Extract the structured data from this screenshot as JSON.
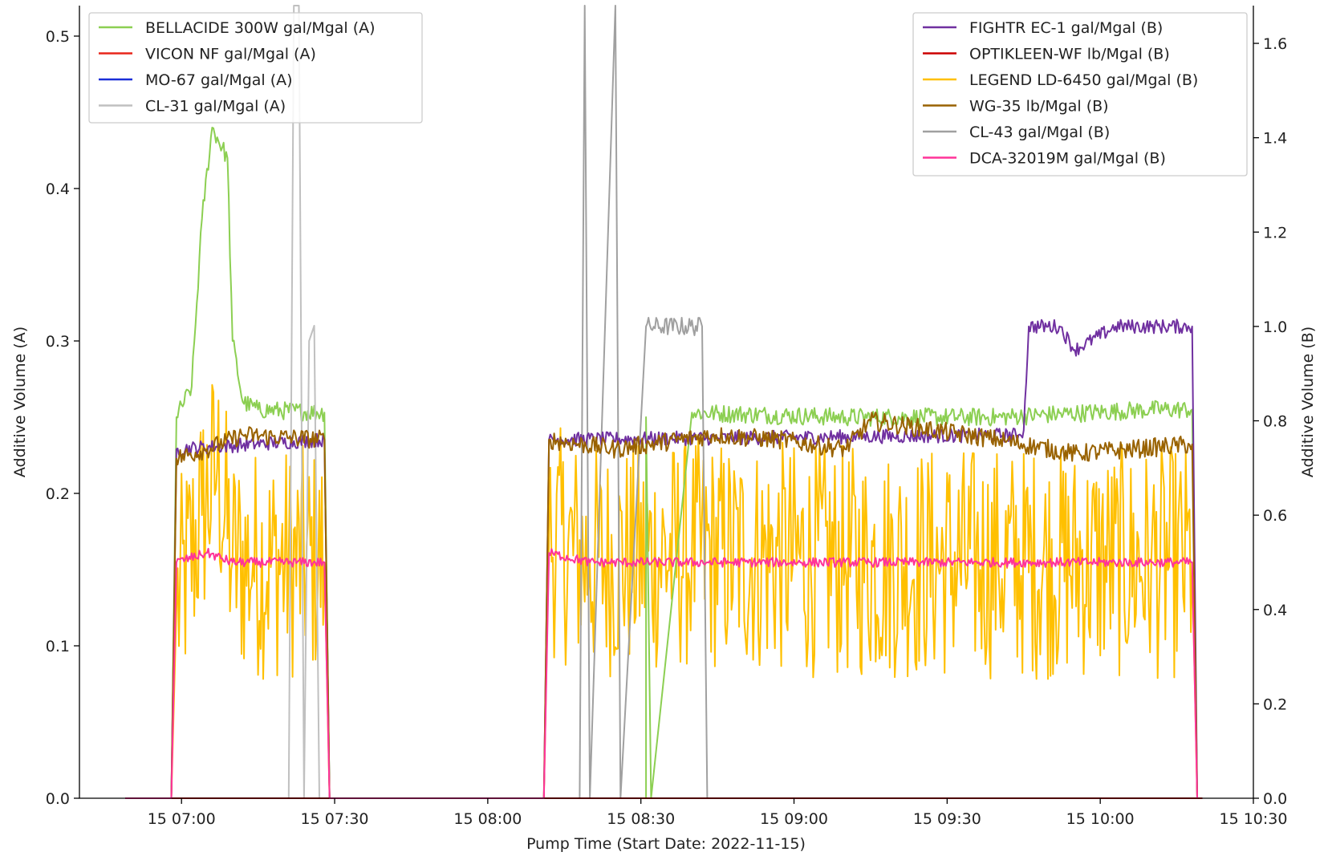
{
  "chart_data": {
    "type": "line",
    "title": "",
    "xlabel": "Pump Time (Start Date: 2022-11-15)",
    "ylabel_left": "Additive Volume (A)",
    "ylabel_right": "Additive Volume (B)",
    "x_unit": "minutes after 2022-11-15 06:40",
    "xlim": [
      "2022-11-15 06:40",
      "2022-11-15 10:30"
    ],
    "ylim_left": [
      0,
      0.52
    ],
    "ylim_right": [
      0,
      1.68
    ],
    "x_ticks": [
      {
        "t": "2022-11-15 07:00",
        "label": "15 07:00"
      },
      {
        "t": "2022-11-15 07:30",
        "label": "15 07:30"
      },
      {
        "t": "2022-11-15 08:00",
        "label": "15 08:00"
      },
      {
        "t": "2022-11-15 08:30",
        "label": "15 08:30"
      },
      {
        "t": "2022-11-15 09:00",
        "label": "15 09:00"
      },
      {
        "t": "2022-11-15 09:30",
        "label": "15 09:30"
      },
      {
        "t": "2022-11-15 10:00",
        "label": "15 10:00"
      },
      {
        "t": "2022-11-15 10:30",
        "label": "15 10:30"
      }
    ],
    "y_ticks_left": [
      "0.0",
      "0.1",
      "0.2",
      "0.3",
      "0.4",
      "0.5"
    ],
    "y_ticks_right": [
      "0.0",
      "0.2",
      "0.4",
      "0.6",
      "0.8",
      "1.0",
      "1.2",
      "1.4",
      "1.6"
    ],
    "grid": false,
    "legend_left_position": "upper-left",
    "legend_right_position": "upper-right",
    "series": [
      {
        "name": "BELLACIDE 300W gal/Mgal (A)",
        "axis": "A",
        "color": "#8ccf52",
        "noise": 0.006,
        "points": [
          [
            "06:49",
            0
          ],
          [
            "06:58",
            0
          ],
          [
            "06:59",
            0.25
          ],
          [
            "07:02",
            0.27
          ],
          [
            "07:04",
            0.38
          ],
          [
            "07:06",
            0.44
          ],
          [
            "07:09",
            0.42
          ],
          [
            "07:10",
            0.3
          ],
          [
            "07:12",
            0.26
          ],
          [
            "07:15",
            0.255
          ],
          [
            "07:28",
            0.253
          ],
          [
            "07:29",
            0
          ],
          [
            "08:31",
            0
          ],
          [
            "08:32",
            0
          ],
          [
            "08:29",
            0
          ],
          [
            "08:30",
            0
          ],
          [
            "08:31",
            0.25
          ],
          [
            "08:40",
            0.253
          ],
          [
            "09:10",
            0.25
          ],
          [
            "09:40",
            0.25
          ],
          [
            "10:10",
            0.255
          ],
          [
            "10:18",
            0.255
          ],
          [
            "10:19",
            0
          ]
        ]
      },
      {
        "name": "VICON NF gal/Mgal (A)",
        "axis": "A",
        "color": "#e8251a",
        "noise": 0,
        "points": [
          [
            "06:49",
            0
          ],
          [
            "10:20",
            0
          ]
        ]
      },
      {
        "name": "MO-67 gal/Mgal (A)",
        "axis": "A",
        "color": "#1a2ed8",
        "noise": 0,
        "points": [
          [
            "06:49",
            0
          ],
          [
            "10:20",
            0
          ]
        ]
      },
      {
        "name": "CL-31 gal/Mgal (A)",
        "axis": "A",
        "color": "#c0c0c0",
        "noise": 0,
        "points": [
          [
            "06:49",
            0
          ],
          [
            "07:21",
            0
          ],
          [
            "07:22",
            0.52
          ],
          [
            "07:23",
            0.52
          ],
          [
            "07:24",
            0
          ],
          [
            "07:25",
            0.3
          ],
          [
            "07:26",
            0.31
          ],
          [
            "07:27",
            0
          ],
          [
            "10:20",
            0
          ]
        ]
      },
      {
        "name": "FIGHTR EC-1 gal/Mgal (B)",
        "axis": "B",
        "color": "#7030a0",
        "noise": 0.015,
        "points": [
          [
            "06:49",
            0
          ],
          [
            "06:58",
            0
          ],
          [
            "06:59",
            0.74
          ],
          [
            "07:28",
            0.76
          ],
          [
            "07:29",
            0
          ],
          [
            "08:11",
            0
          ],
          [
            "08:12",
            0.76
          ],
          [
            "09:44",
            0.77
          ],
          [
            "09:45",
            0.78
          ],
          [
            "09:46",
            1.0
          ],
          [
            "09:52",
            1.0
          ],
          [
            "09:55",
            0.95
          ],
          [
            "10:03",
            1.0
          ],
          [
            "10:10",
            1.0
          ],
          [
            "10:18",
            1.0
          ],
          [
            "10:19",
            0
          ]
        ]
      },
      {
        "name": "OPTIKLEEN-WF lb/Mgal (B)",
        "axis": "B",
        "color": "#cc0000",
        "noise": 0,
        "points": [
          [
            "06:49",
            0
          ],
          [
            "10:20",
            0
          ]
        ]
      },
      {
        "name": "LEGEND LD-6450 gal/Mgal (B)",
        "axis": "B",
        "color": "#ffc000",
        "noise": 0.25,
        "points": [
          [
            "06:49",
            0
          ],
          [
            "06:58",
            0
          ],
          [
            "06:59",
            0.4
          ],
          [
            "07:04",
            0.6
          ],
          [
            "07:07",
            0.7
          ],
          [
            "07:10",
            0.5
          ],
          [
            "07:14",
            0.5
          ],
          [
            "07:28",
            0.5
          ],
          [
            "07:29",
            0
          ],
          [
            "08:11",
            0
          ],
          [
            "08:12",
            0.55
          ],
          [
            "08:20",
            0.5
          ],
          [
            "08:40",
            0.52
          ],
          [
            "09:10",
            0.5
          ],
          [
            "09:40",
            0.5
          ],
          [
            "10:10",
            0.5
          ],
          [
            "10:18",
            0.5
          ],
          [
            "10:19",
            0
          ]
        ]
      },
      {
        "name": "WG-35 lb/Mgal (B)",
        "axis": "B",
        "color": "#996200",
        "noise": 0.02,
        "points": [
          [
            "06:49",
            0
          ],
          [
            "06:58",
            0
          ],
          [
            "06:59",
            0.72
          ],
          [
            "07:05",
            0.74
          ],
          [
            "07:12",
            0.77
          ],
          [
            "07:28",
            0.76
          ],
          [
            "07:29",
            0
          ],
          [
            "08:11",
            0
          ],
          [
            "08:12",
            0.76
          ],
          [
            "08:25",
            0.74
          ],
          [
            "08:44",
            0.77
          ],
          [
            "08:57",
            0.76
          ],
          [
            "09:10",
            0.74
          ],
          [
            "09:15",
            0.8
          ],
          [
            "09:40",
            0.76
          ],
          [
            "09:55",
            0.73
          ],
          [
            "10:18",
            0.75
          ],
          [
            "10:19",
            0
          ]
        ]
      },
      {
        "name": "CL-43 gal/Mgal (B)",
        "axis": "B",
        "color": "#a0a0a0",
        "noise": 0.02,
        "points": [
          [
            "06:49",
            0
          ],
          [
            "08:18",
            0
          ],
          [
            "08:19",
            1.68
          ],
          [
            "08:20",
            0
          ],
          [
            "08:25",
            1.68
          ],
          [
            "08:26",
            0
          ],
          [
            "08:31",
            1.0
          ],
          [
            "08:42",
            1.0
          ],
          [
            "08:43",
            0
          ],
          [
            "10:20",
            0
          ]
        ]
      },
      {
        "name": "DCA-32019M gal/Mgal (B)",
        "axis": "B",
        "color": "#ff3399",
        "noise": 0.01,
        "points": [
          [
            "06:49",
            0
          ],
          [
            "06:58",
            0
          ],
          [
            "06:59",
            0.5
          ],
          [
            "07:05",
            0.52
          ],
          [
            "07:10",
            0.5
          ],
          [
            "07:28",
            0.5
          ],
          [
            "07:29",
            0
          ],
          [
            "08:11",
            0
          ],
          [
            "08:12",
            0.52
          ],
          [
            "08:20",
            0.5
          ],
          [
            "09:10",
            0.5
          ],
          [
            "10:18",
            0.5
          ],
          [
            "10:19",
            0
          ]
        ]
      }
    ]
  }
}
